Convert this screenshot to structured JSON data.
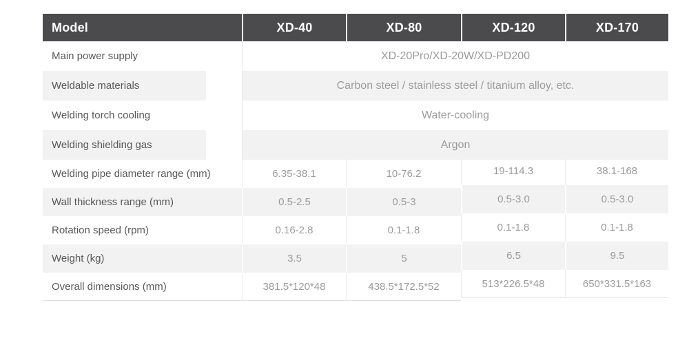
{
  "table": {
    "header": {
      "model_label": "Model",
      "columns": [
        "XD-40",
        "XD-80",
        "XD-120",
        "XD-170"
      ]
    },
    "spanning_rows": [
      {
        "label": "Main power supply",
        "value": "XD-20Pro/XD-20W/XD-PD200"
      },
      {
        "label": "Weldable materials",
        "value": "Carbon steel / stainless steel / titanium alloy, etc."
      },
      {
        "label": "Welding torch cooling",
        "value": "Water-cooling"
      },
      {
        "label": "Welding shielding gas",
        "value": "Argon"
      }
    ],
    "grid_rows": [
      {
        "label": "Welding pipe diameter range (mm)",
        "values": [
          "6.35-38.1",
          "10-76.2",
          "19-114.3",
          "38.1-168"
        ]
      },
      {
        "label": "Wall thickness range (mm)",
        "values": [
          "0.5-2.5",
          "0.5-3",
          "0.5-3.0",
          "0.5-3.0"
        ]
      },
      {
        "label": "Rotation speed (rpm)",
        "values": [
          "0.16-2.8",
          "0.1-1.8",
          "0.1-1.8",
          "0.1-1.8"
        ]
      },
      {
        "label": "Weight (kg)",
        "values": [
          "3.5",
          "5",
          "6.5",
          "9.5"
        ]
      },
      {
        "label": "Overall dimensions (mm)",
        "values": [
          "381.5*120*48",
          "438.5*172.5*52",
          "513*226.5*48",
          "650*331.5*163"
        ]
      }
    ],
    "colors": {
      "header_bg": "#4b4b4d",
      "header_text": "#ffffff",
      "label_text": "#58585a",
      "value_text": "#9b9b9d",
      "alt_row_bg": "#f2f2f3",
      "grid_line": "#ededed"
    }
  }
}
